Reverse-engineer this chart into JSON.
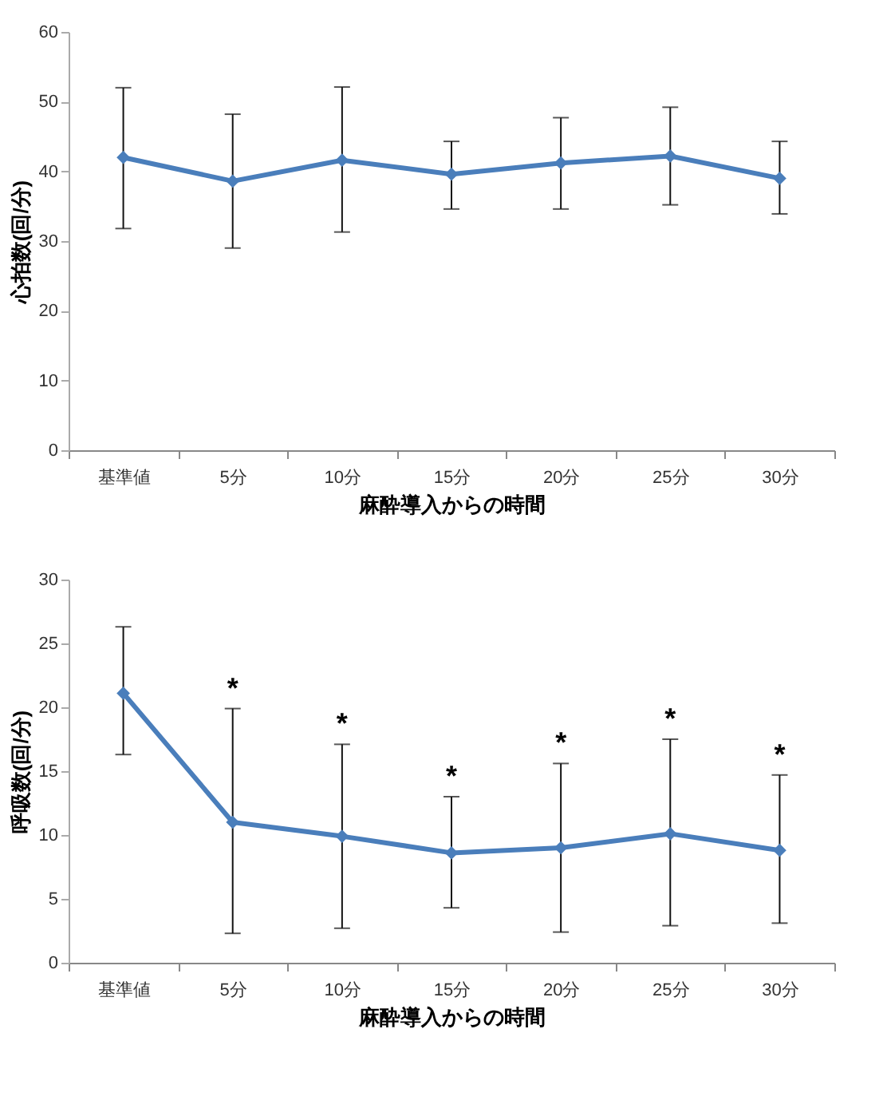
{
  "chart_data": [
    {
      "type": "line",
      "categories": [
        "基準値",
        "5分",
        "10分",
        "15分",
        "20分",
        "25分",
        "30分"
      ],
      "series": [
        {
          "color": "#4a7ebb",
          "values": [
            42,
            38.6,
            41.6,
            39.6,
            41.2,
            42.2,
            39
          ],
          "errors": [
            [
              31.8,
              52
            ],
            [
              29,
              48.2
            ],
            [
              31.3,
              52.1
            ],
            [
              34.6,
              44.3
            ],
            [
              34.6,
              47.7
            ],
            [
              35.2,
              49.2
            ],
            [
              33.9,
              44.3
            ]
          ]
        }
      ],
      "xlabel": "麻酔導入からの時間",
      "ylabel": "心拍数(回/分)",
      "ylim": [
        0,
        60
      ],
      "yticks": [
        0,
        10,
        20,
        30,
        40,
        50,
        60
      ],
      "marker": "diamond",
      "line_style": "solid",
      "grid": false
    },
    {
      "type": "line",
      "categories": [
        "基準値",
        "5分",
        "10分",
        "15分",
        "20分",
        "25分",
        "30分"
      ],
      "series": [
        {
          "color": "#4a7ebb",
          "values": [
            21.1,
            11,
            9.9,
            8.6,
            9,
            10.1,
            8.8
          ],
          "errors": [
            [
              16.3,
              26.3
            ],
            [
              2.3,
              19.9
            ],
            [
              2.7,
              17.1
            ],
            [
              4.3,
              13
            ],
            [
              2.4,
              15.6
            ],
            [
              2.9,
              17.5
            ],
            [
              3.1,
              14.7
            ]
          ]
        }
      ],
      "xlabel": "麻酔導入からの時間",
      "ylabel": "呼吸数(回/分)",
      "ylim": [
        0,
        30
      ],
      "yticks": [
        0,
        5,
        10,
        15,
        20,
        25,
        30
      ],
      "marker": "diamond",
      "line_style": "solid",
      "grid": false,
      "annotations": [
        {
          "text": "*",
          "x": "5分",
          "y": 19.9
        },
        {
          "text": "*",
          "x": "10分",
          "y": 17.1
        },
        {
          "text": "*",
          "x": "15分",
          "y": 13
        },
        {
          "text": "*",
          "x": "20分",
          "y": 15.6
        },
        {
          "text": "*",
          "x": "25分",
          "y": 17.5
        },
        {
          "text": "*",
          "x": "30分",
          "y": 14.7
        }
      ]
    }
  ]
}
